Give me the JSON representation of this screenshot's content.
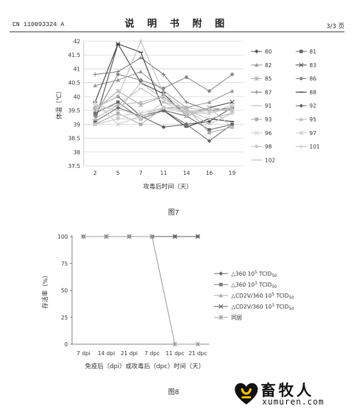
{
  "header": {
    "patent_number": "CN 110093324 A",
    "title": "说 明 书 附 图",
    "page": "3/3 页"
  },
  "figures": {
    "fig7_caption": "图7",
    "fig8_caption": "图8"
  },
  "chart_data": [
    {
      "type": "line",
      "xlabel": "攻毒后时间（天）",
      "ylabel": "体温（℃）",
      "categories": [
        "2",
        "5",
        "7",
        "11",
        "14",
        "16",
        "19"
      ],
      "yticks": [
        "37.5",
        "38",
        "38.5",
        "39",
        "39.5",
        "40",
        "40.5",
        "41",
        "41.5",
        "42"
      ],
      "ylim": [
        37.5,
        42
      ],
      "grid": "horizontal",
      "legend_position": "right",
      "series": [
        {
          "name": "80",
          "marker": "diamond",
          "color": "#555555",
          "values": [
            39.6,
            40.0,
            39.3,
            38.9,
            39.0,
            39.1,
            39.6
          ]
        },
        {
          "name": "81",
          "marker": "square",
          "color": "#666666",
          "values": [
            39.4,
            39.8,
            39.2,
            39.5,
            39.3,
            38.8,
            39.0
          ]
        },
        {
          "name": "82",
          "marker": "triangle",
          "color": "#999999",
          "values": [
            40.4,
            40.6,
            40.9,
            40.2,
            39.6,
            39.8,
            40.2
          ]
        },
        {
          "name": "83",
          "marker": "x",
          "color": "#444444",
          "values": [
            39.1,
            41.9,
            40.5,
            40.1,
            39.3,
            39.6,
            39.8
          ]
        },
        {
          "name": "85",
          "marker": "star",
          "color": "#aaaaaa",
          "values": [
            39.5,
            40.2,
            39.7,
            40.0,
            39.4,
            39.6,
            39.5
          ]
        },
        {
          "name": "86",
          "marker": "circle",
          "color": "#888888",
          "values": [
            39.3,
            40.8,
            40.6,
            40.3,
            40.7,
            40.2,
            40.8
          ]
        },
        {
          "name": "87",
          "marker": "plus",
          "color": "#777777",
          "values": [
            40.8,
            40.9,
            41.4,
            40.8,
            39.8,
            39.5,
            39.6
          ]
        },
        {
          "name": "88",
          "marker": "dash",
          "color": "#333333",
          "values": [
            39.8,
            41.9,
            41.6,
            39.5,
            38.9,
            39.2,
            39.1
          ]
        },
        {
          "name": "91",
          "marker": "line",
          "color": "#bbbbbb",
          "values": [
            39.7,
            39.5,
            40.5,
            39.9,
            39.5,
            39.0,
            39.4
          ]
        },
        {
          "name": "92",
          "marker": "diamond",
          "color": "#666666",
          "values": [
            39.1,
            39.6,
            39.3,
            39.5,
            39.0,
            38.4,
            39.0
          ]
        },
        {
          "name": "93",
          "marker": "square",
          "color": "#aaaaaa",
          "values": [
            39.0,
            39.4,
            39.0,
            39.6,
            39.6,
            38.7,
            38.9
          ]
        },
        {
          "name": "95",
          "marker": "triangle",
          "color": "#bbbbbb",
          "values": [
            39.2,
            39.7,
            39.8,
            40.0,
            39.3,
            39.6,
            38.9
          ]
        },
        {
          "name": "96",
          "marker": "x",
          "color": "#cccccc",
          "values": [
            39.6,
            39.3,
            39.4,
            39.6,
            39.4,
            39.4,
            39.6
          ]
        },
        {
          "name": "97",
          "marker": "star",
          "color": "#cccccc",
          "values": [
            39.8,
            39.0,
            39.3,
            39.6,
            39.5,
            39.4,
            39.7
          ]
        },
        {
          "name": "98",
          "marker": "circle",
          "color": "#c8c8c8",
          "values": [
            39.0,
            39.2,
            39.2,
            39.8,
            39.4,
            39.5,
            39.5
          ]
        },
        {
          "name": "101",
          "marker": "plus",
          "color": "#bbbbbb",
          "values": [
            39.6,
            40.0,
            42.0,
            40.1,
            39.5,
            39.2,
            39.4
          ]
        },
        {
          "name": "102",
          "marker": "line",
          "color": "#bbbbbb",
          "values": [
            39.5,
            39.7,
            40.3,
            39.8,
            39.6,
            39.5,
            39.5
          ]
        }
      ]
    },
    {
      "type": "line",
      "xlabel": "免疫后（dpi）或攻毒后（dpc）时间（天）",
      "ylabel": "存活率（%）",
      "categories": [
        "7 dpi",
        "14 dpi",
        "21 dpi",
        "7 dpc",
        "11 dpc",
        "21 dpc"
      ],
      "yticks": [
        "0",
        "25",
        "50",
        "75",
        "100"
      ],
      "ylim": [
        0,
        100
      ],
      "grid": "none",
      "legend_position": "right",
      "series": [
        {
          "name": "△360 10",
          "sup": "5",
          "unit": " TCID",
          "sub": "50",
          "marker": "diamond",
          "color": "#666666",
          "values": [
            100,
            100,
            100,
            100,
            100,
            100
          ]
        },
        {
          "name": "△360 10",
          "sup": "3",
          "unit": " TCID",
          "sub": "50",
          "marker": "square",
          "color": "#777777",
          "values": [
            100,
            100,
            100,
            100,
            100,
            100
          ]
        },
        {
          "name": "△CD2V/360 10",
          "sup": "5",
          "unit": " TCID",
          "sub": "50",
          "marker": "triangle",
          "color": "#aaaaaa",
          "values": [
            100,
            100,
            100,
            100,
            100,
            100
          ]
        },
        {
          "name": "△CD2V/360 10",
          "sup": "3",
          "unit": " TCID",
          "sub": "50",
          "marker": "x",
          "color": "#555555",
          "values": [
            100,
            100,
            100,
            100,
            100,
            100
          ]
        },
        {
          "name": "同居",
          "marker": "star",
          "color": "#999999",
          "values": [
            100,
            100,
            100,
            100,
            0,
            0
          ]
        }
      ]
    }
  ],
  "logo": {
    "chinese": "畜牧人",
    "domain": "xumuren.com"
  }
}
